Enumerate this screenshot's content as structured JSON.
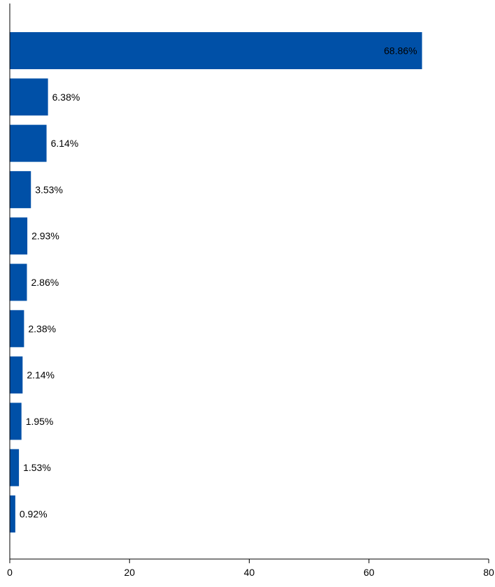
{
  "chart_data": {
    "type": "bar",
    "orientation": "horizontal",
    "title": "",
    "xlabel": "",
    "ylabel": "",
    "values": [
      68.86,
      6.38,
      6.14,
      3.53,
      2.93,
      2.86,
      2.38,
      2.14,
      1.95,
      1.53,
      0.92
    ],
    "data_labels": [
      "68.86%",
      "6.38%",
      "6.14%",
      "3.53%",
      "2.93%",
      "2.86%",
      "2.38%",
      "2.14%",
      "1.95%",
      "1.53%",
      "0.92%"
    ],
    "xlim": [
      0,
      80
    ],
    "xticks": [
      0,
      20,
      40,
      60,
      80
    ],
    "xtick_labels": [
      "0",
      "20",
      "40",
      "60",
      "80"
    ],
    "grid": false,
    "legend": "none",
    "bar_color": "#0050A7",
    "label_color": "#000000",
    "axis_color": "#000000"
  }
}
